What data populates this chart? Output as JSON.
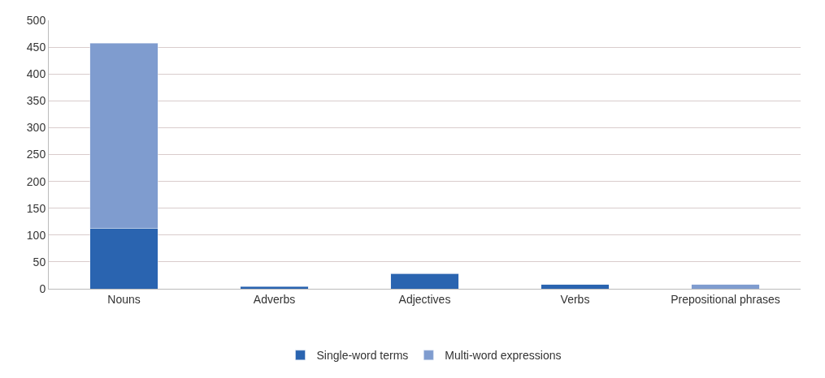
{
  "chart_data": {
    "type": "bar",
    "stacked": true,
    "categories": [
      "Nouns",
      "Adverbs",
      "Adjectives",
      "Verbs",
      "Prepositional phrases"
    ],
    "series": [
      {
        "name": "Single-word terms",
        "color": "#2a64b0",
        "values": [
          113,
          4,
          28,
          8,
          null
        ]
      },
      {
        "name": "Multi-word expressions",
        "color": "#7f9ccf",
        "values": [
          344,
          null,
          1,
          null,
          8
        ]
      }
    ],
    "ylim": [
      0,
      500
    ],
    "yticks": [
      0,
      50,
      100,
      150,
      200,
      250,
      300,
      350,
      400,
      450,
      500
    ],
    "grid": "y",
    "legend": "bottom"
  }
}
